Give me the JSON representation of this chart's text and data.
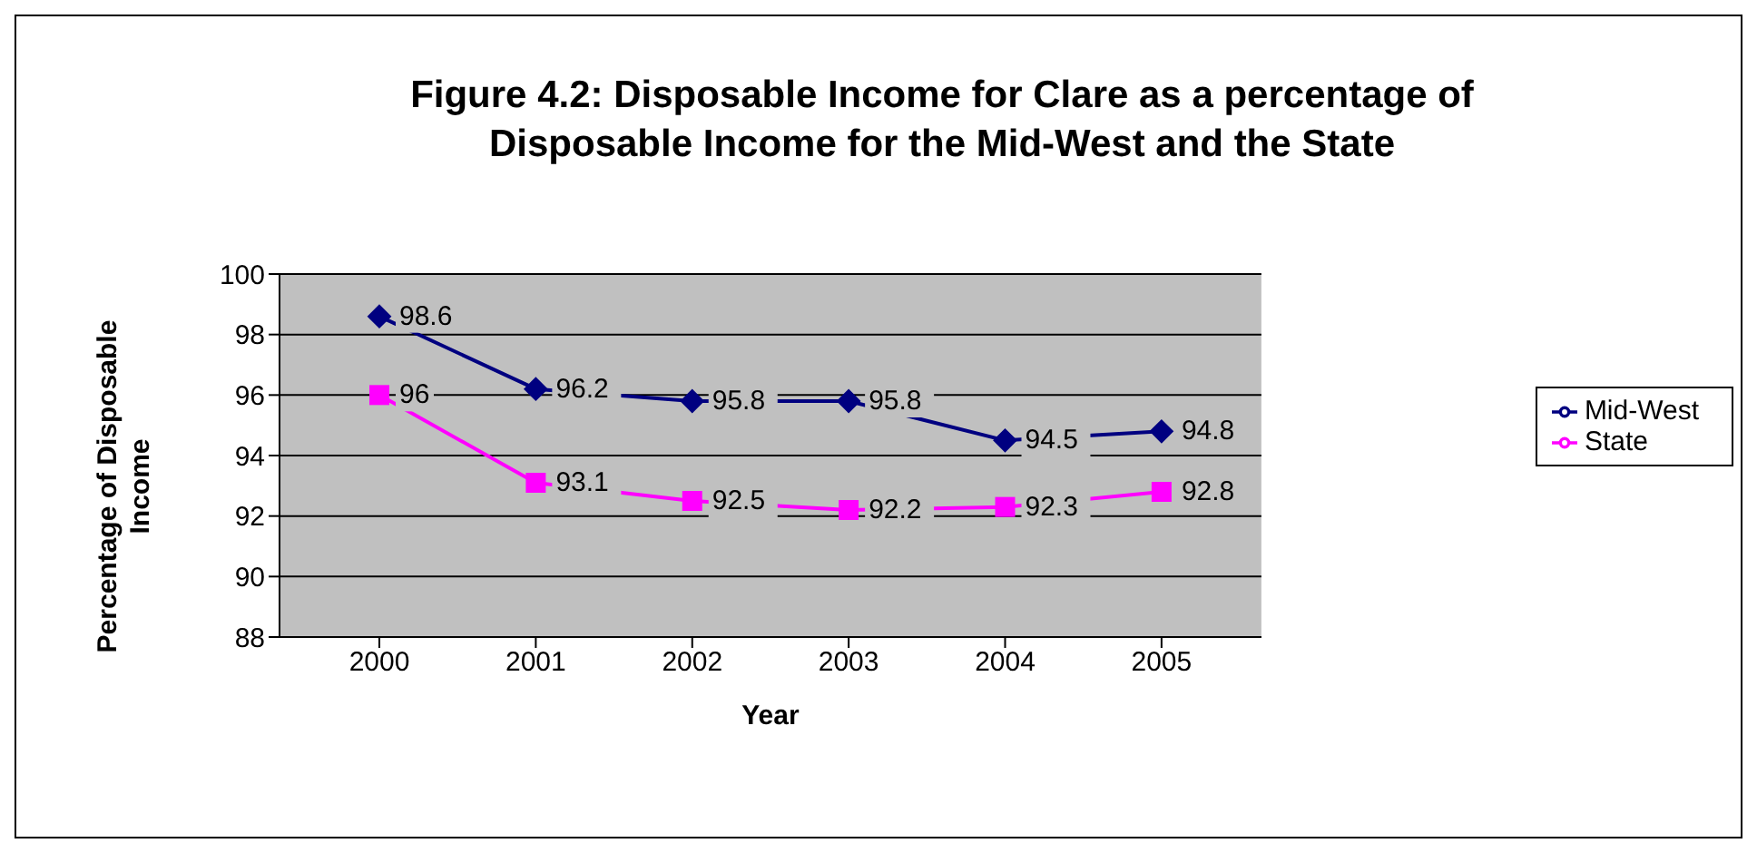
{
  "chart_data": {
    "type": "line",
    "title": "Figure 4.2: Disposable Income for Clare as a percentage of Disposable Income for the Mid-West and the State",
    "xlabel": "Year",
    "ylabel": "Percentage of Disposable Income",
    "categories": [
      "2000",
      "2001",
      "2002",
      "2003",
      "2004",
      "2005"
    ],
    "series": [
      {
        "name": "Mid-West",
        "color": "#000080",
        "marker": "diamond",
        "values": [
          98.6,
          96.2,
          95.8,
          95.8,
          94.5,
          94.8
        ]
      },
      {
        "name": "State",
        "color": "#ff00ff",
        "marker": "square",
        "values": [
          96,
          93.1,
          92.5,
          92.2,
          92.3,
          92.8
        ]
      }
    ],
    "ylim": [
      88,
      100
    ],
    "yticks": [
      88,
      90,
      92,
      94,
      96,
      98,
      100
    ],
    "grid": "y",
    "legend": "right",
    "data_labels": true
  }
}
